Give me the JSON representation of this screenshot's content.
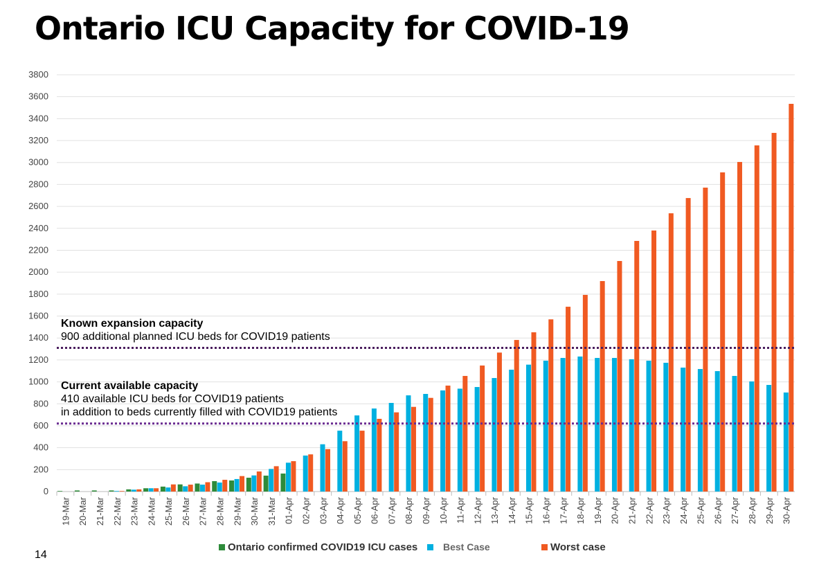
{
  "title": "Ontario ICU Capacity for COVID-19",
  "page_number": "14",
  "chart_data": {
    "type": "bar",
    "title": "",
    "xlabel": "",
    "ylabel": "",
    "ylim": [
      0,
      3800
    ],
    "yticks": [
      0,
      200,
      400,
      600,
      800,
      1000,
      1200,
      1400,
      1600,
      1800,
      2000,
      2200,
      2400,
      2600,
      2800,
      3000,
      3200,
      3400,
      3600,
      3800
    ],
    "grid": true,
    "legend_position": "bottom",
    "categories": [
      "19-Mar",
      "20-Mar",
      "21-Mar",
      "22-Mar",
      "23-Mar",
      "24-Mar",
      "25-Mar",
      "26-Mar",
      "27-Mar",
      "28-Mar",
      "29-Mar",
      "30-Mar",
      "31-Mar",
      "01-Apr",
      "02-Apr",
      "03-Apr",
      "04-Apr",
      "05-Apr",
      "06-Apr",
      "07-Apr",
      "08-Apr",
      "09-Apr",
      "10-Apr",
      "11-Apr",
      "12-Apr",
      "13-Apr",
      "14-Apr",
      "15-Apr",
      "16-Apr",
      "17-Apr",
      "18-Apr",
      "19-Apr",
      "20-Apr",
      "21-Apr",
      "22-Apr",
      "23-Apr",
      "24-Apr",
      "25-Apr",
      "26-Apr",
      "27-Apr",
      "28-Apr",
      "29-Apr",
      "30-Apr"
    ],
    "series": [
      {
        "name": "Ontario confirmed COVID19 ICU cases",
        "color": "#2e8b3a",
        "values": [
          5,
          10,
          10,
          10,
          20,
          30,
          45,
          65,
          73,
          95,
          101,
          126,
          145,
          164,
          null,
          null,
          null,
          null,
          null,
          null,
          null,
          null,
          null,
          null,
          null,
          null,
          null,
          null,
          null,
          null,
          null,
          null,
          null,
          null,
          null,
          null,
          null,
          null,
          null,
          null,
          null,
          null,
          null
        ]
      },
      {
        "name": "Best Case",
        "color": "#00b0e0",
        "values": [
          null,
          null,
          null,
          5,
          17,
          30,
          37,
          48,
          63,
          82,
          114,
          147,
          206,
          263,
          328,
          431,
          555,
          694,
          757,
          808,
          877,
          890,
          922,
          938,
          953,
          1035,
          1111,
          1157,
          1193,
          1218,
          1231,
          1218,
          1218,
          1206,
          1193,
          1174,
          1130,
          1117,
          1098,
          1054,
          1004,
          972,
          903
        ]
      },
      {
        "name": "Worst case",
        "color": "#f05a22",
        "values": [
          null,
          null,
          null,
          5,
          20,
          30,
          65,
          63,
          85,
          107,
          141,
          183,
          231,
          277,
          339,
          387,
          459,
          555,
          663,
          722,
          772,
          854,
          966,
          1054,
          1149,
          1267,
          1382,
          1452,
          1570,
          1685,
          1793,
          1919,
          2102,
          2285,
          2380,
          2537,
          2676,
          2771,
          2910,
          3005,
          3156,
          3270,
          3535
        ]
      }
    ],
    "reference_lines": [
      {
        "value": 1310,
        "color": "#4b1e5e",
        "label_bold": "Known expansion capacity",
        "label": "900 additional planned ICU beds for COVID19 patients"
      },
      {
        "value": 620,
        "color": "#6a2c91",
        "label_bold": "Current available capacity",
        "label": "410 available ICU beds for COVID19 patients",
        "label2": "in addition to beds currently filled with COVID19 patients"
      }
    ]
  }
}
